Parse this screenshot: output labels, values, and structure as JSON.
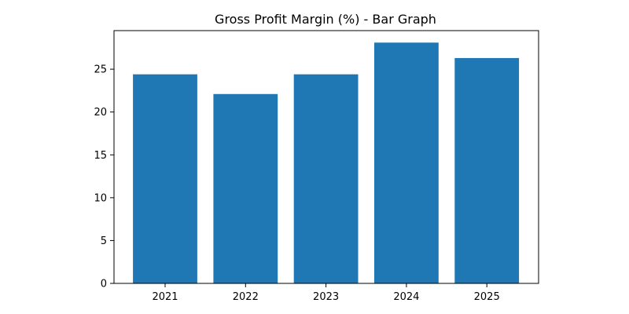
{
  "chart_data": {
    "type": "bar",
    "title": "Gross Profit Margin (%) - Bar Graph",
    "xlabel": "",
    "ylabel": "",
    "categories": [
      "2021",
      "2022",
      "2023",
      "2024",
      "2025"
    ],
    "values": [
      24.4,
      22.1,
      24.4,
      28.1,
      26.3
    ],
    "ylim": [
      0,
      29.5
    ],
    "yticks": [
      0,
      5,
      10,
      15,
      20,
      25
    ],
    "grid": false,
    "bar_color": "#1f77b4"
  }
}
